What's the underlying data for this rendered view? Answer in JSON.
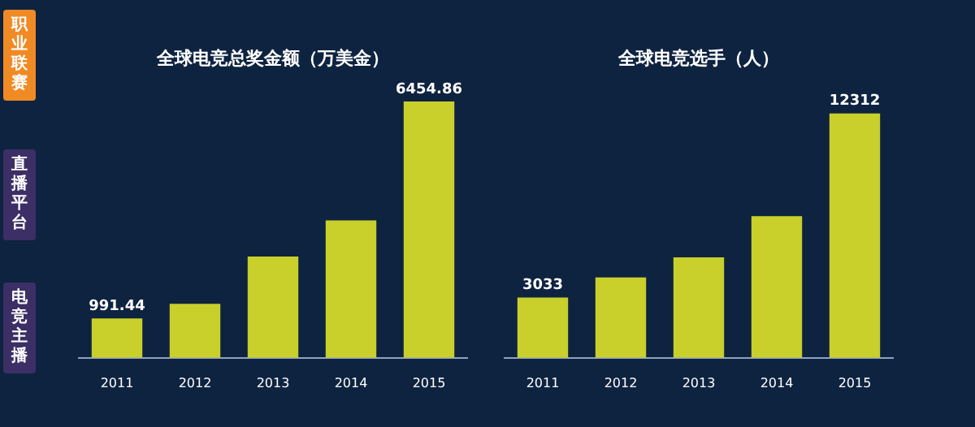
{
  "chart_data": [
    {
      "type": "other",
      "annotations": [
        "职业联赛",
        "直播平台",
        "电竞主播"
      ]
    },
    {
      "type": "bar",
      "title": "全球电竞总奖金额（万美金）",
      "categories": [
        "2011",
        "2012",
        "2013",
        "2014",
        "2015"
      ],
      "values": [
        991.44,
        1360,
        2550,
        3460,
        6454.86
      ],
      "value_labels": [
        "991.44",
        null,
        null,
        null,
        "6454.86"
      ],
      "color": "#c9cf2b"
    },
    {
      "type": "bar",
      "title": "全球电竞选手（人）",
      "categories": [
        "2011",
        "2012",
        "2013",
        "2014",
        "2015"
      ],
      "values": [
        3033,
        4050,
        5060,
        7140,
        12312
      ],
      "value_labels": [
        "3033",
        null,
        null,
        null,
        "12312"
      ],
      "color": "#c9cf2b"
    }
  ]
}
